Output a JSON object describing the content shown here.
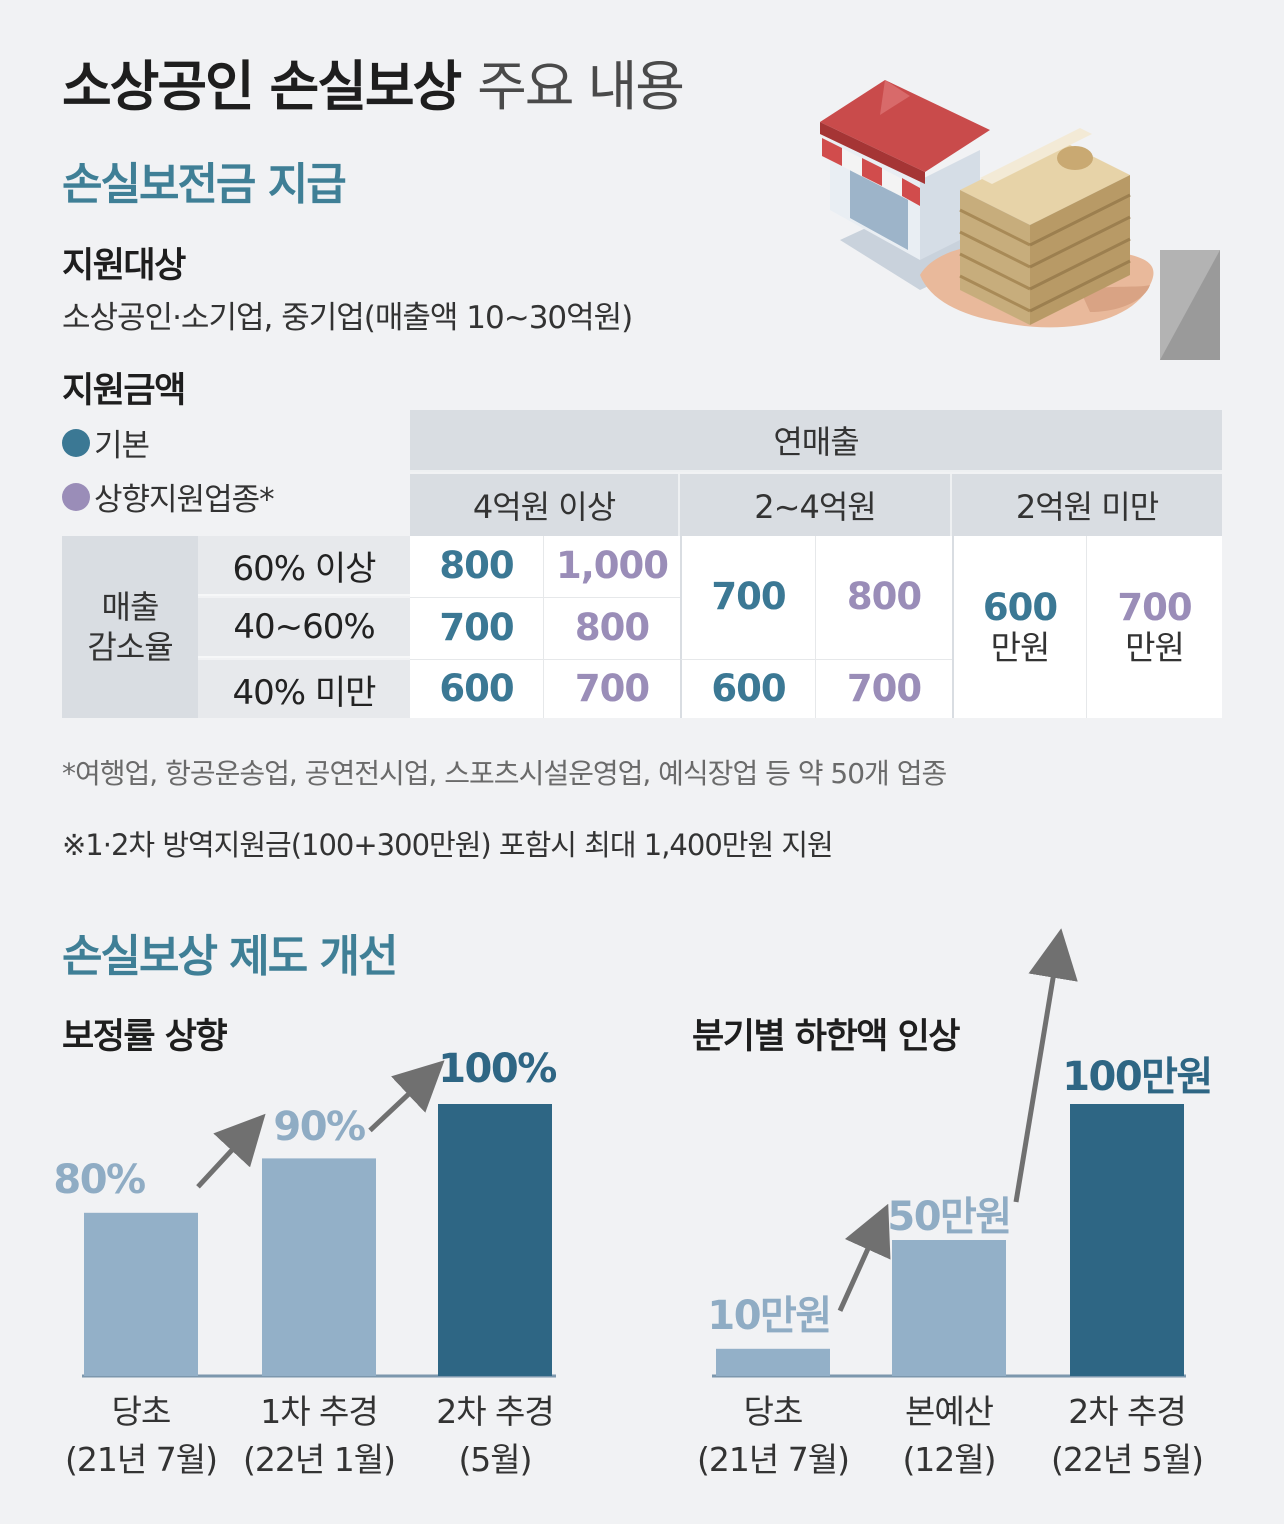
{
  "title": {
    "bold": "소상공인 손실보상",
    "light": "주요 내용"
  },
  "section1": {
    "heading": "손실보전금 지급",
    "target_label": "지원대상",
    "target_text": "소상공인·소기업, 중기업(매출액 10~30억원)",
    "amount_label": "지원금액",
    "legend": [
      {
        "label": "기본",
        "color": "#3b7894"
      },
      {
        "label": "상향지원업종*",
        "color": "#9a8db8"
      }
    ],
    "table": {
      "header_top": "연매출",
      "revenue_groups": [
        "4억원 이상",
        "2~4억원",
        "2억원 미만"
      ],
      "row_header": "매출\n감소율",
      "rows": [
        "60% 이상",
        "40~60%",
        "40% 미만"
      ],
      "group1": [
        [
          "800",
          "1,000"
        ],
        [
          "700",
          "800"
        ],
        [
          "600",
          "700"
        ]
      ],
      "group2": {
        "top_merged": [
          "700",
          "800"
        ],
        "bottom": [
          "600",
          "700"
        ]
      },
      "group3": {
        "merged": [
          "600",
          "700"
        ],
        "unit": "만원"
      }
    },
    "footnote1": "*여행업, 항공운송업, 공연전시업, 스포츠시설운영업, 예식장업 등 약 50개 업종",
    "footnote2": "※1·2차 방역지원금(100+300만원) 포함시 최대 1,400만원 지원"
  },
  "section2": {
    "heading": "손실보상 제도 개선"
  },
  "colors": {
    "light_bar": "#93b0c8",
    "dark_bar": "#2e6684",
    "light_value": "#8facc4",
    "dark_value": "#2e6684",
    "teal": "#3f7f96"
  },
  "chart_data": [
    {
      "type": "bar",
      "title": "보정률 상향",
      "categories": [
        "당초\n(21년 7월)",
        "1차 추경\n(22년 1월)",
        "2차 추경\n(5월)"
      ],
      "values": [
        80,
        90,
        100
      ],
      "value_labels": [
        "80%",
        "90%",
        "100%"
      ],
      "ylim": [
        0,
        100
      ]
    },
    {
      "type": "bar",
      "title": "분기별 하한액 인상",
      "categories": [
        "당초\n(21년 7월)",
        "본예산\n(12월)",
        "2차 추경\n(22년 5월)"
      ],
      "values": [
        10,
        50,
        100
      ],
      "value_labels": [
        "10만원",
        "50만원",
        "100만원"
      ],
      "ylim": [
        0,
        100
      ]
    }
  ]
}
